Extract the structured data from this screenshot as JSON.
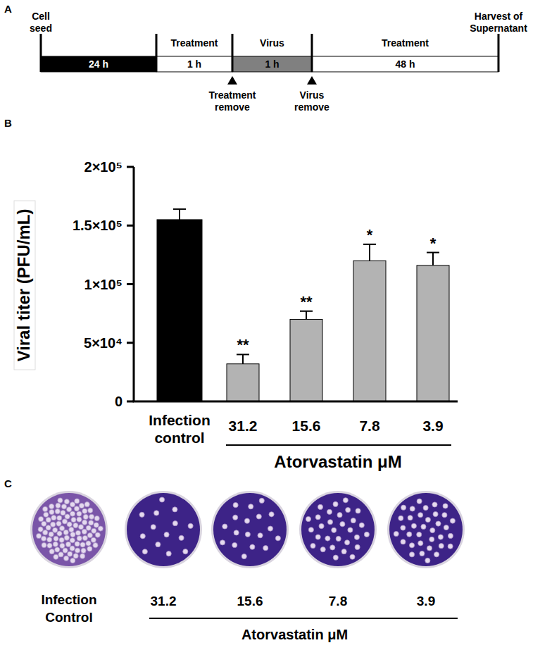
{
  "panel_labels": [
    "A",
    "B",
    "C"
  ],
  "timeline": {
    "start": "Cell seed",
    "end": "Harvest of Supernatant",
    "segments": [
      {
        "duration": "24 h",
        "color": "#000000"
      },
      {
        "duration": "1 h",
        "title": "Treatment",
        "color": "#ffffff"
      },
      {
        "duration": "1 h",
        "title": "Virus",
        "color": "#808080"
      },
      {
        "duration": "48 h",
        "title": "Treatment",
        "color": "#ffffff"
      }
    ],
    "events": [
      {
        "after_segment": 1,
        "label": "Treatment remove"
      },
      {
        "after_segment": 2,
        "label": "Virus remove"
      }
    ]
  },
  "chart_data": {
    "type": "bar",
    "ylabel": "Viral titer (PFU/mL)",
    "xlabel": "Atorvastatin μM",
    "categories": [
      "Infection control",
      "31.2",
      "15.6",
      "7.8",
      "3.9"
    ],
    "values": [
      155000,
      32000,
      70000,
      120000,
      116000
    ],
    "errors": [
      9000,
      8000,
      7000,
      14000,
      11000
    ],
    "annotations": [
      null,
      "**",
      "**",
      "*",
      "*"
    ],
    "colors": [
      "#000000",
      "#b3b3b3",
      "#b3b3b3",
      "#b3b3b3",
      "#b3b3b3"
    ],
    "ylim": [
      0,
      200000
    ],
    "yticks": [
      0,
      {
        "value": 50000,
        "label": "5×10⁴"
      },
      {
        "value": 100000,
        "label": "1×10⁵"
      },
      {
        "value": 150000,
        "label": "1.5×10⁵"
      },
      {
        "value": 200000,
        "label": "2×10⁵"
      }
    ],
    "grid": false
  },
  "plaques": {
    "xlabel": "Atorvastatin μM",
    "wells": [
      {
        "label": "Infection Control",
        "plaque_count": 90
      },
      {
        "label": "31.2",
        "plaque_count": 14
      },
      {
        "label": "15.6",
        "plaque_count": 18
      },
      {
        "label": "7.8",
        "plaque_count": 30
      },
      {
        "label": "3.9",
        "plaque_count": 35
      }
    ]
  }
}
